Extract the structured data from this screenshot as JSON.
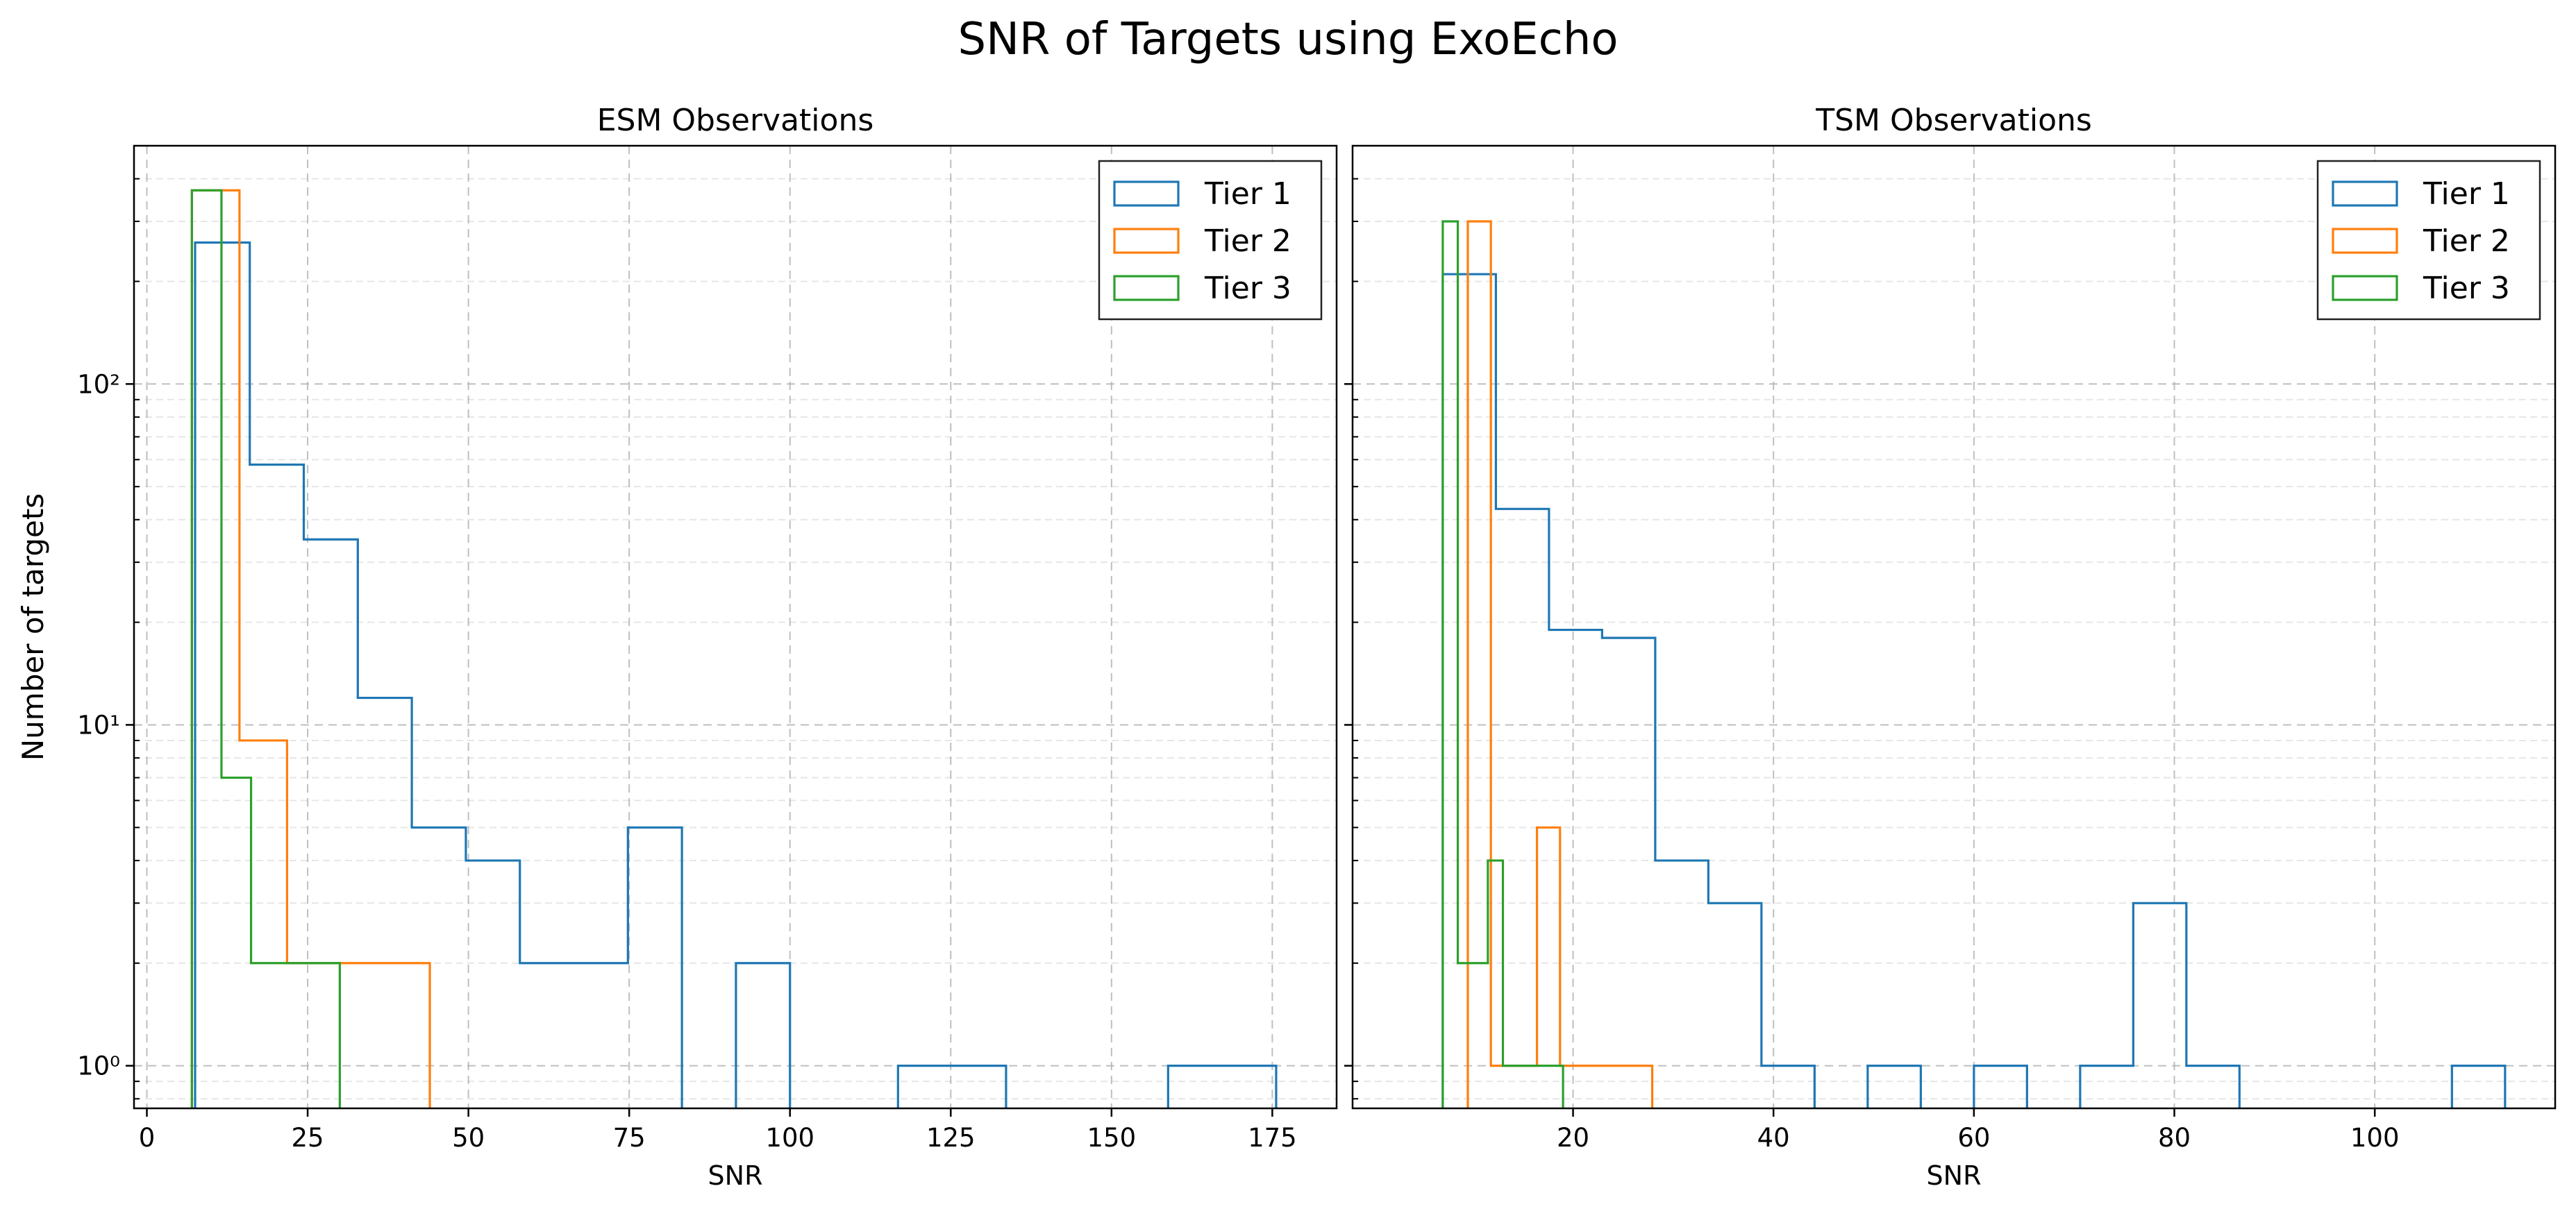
{
  "figure": {
    "title": "SNR of Targets using ExoEcho"
  },
  "colors": {
    "Tier 1": "#1f77b4",
    "Tier 2": "#ff7f0e",
    "Tier 3": "#2ca02c",
    "grid": "#b0b0b0",
    "axis": "#000000"
  },
  "chart_data": [
    {
      "type": "histogram",
      "title": "ESM Observations",
      "xlabel": "SNR",
      "ylabel": "Number of targets",
      "yscale": "log",
      "xlim": [
        -2,
        185
      ],
      "ylim": [
        0.75,
        500
      ],
      "xticks": [
        0,
        25,
        50,
        75,
        100,
        125,
        150,
        175
      ],
      "yticks": [
        {
          "v": 1,
          "label": "10⁰"
        },
        {
          "v": 10,
          "label": "10¹"
        },
        {
          "v": 100,
          "label": "10²"
        }
      ],
      "grid": true,
      "legend": "top-right",
      "series": [
        {
          "name": "Tier 1",
          "edges": [
            7.5,
            16,
            24.4,
            32.8,
            41.2,
            49.6,
            58,
            66.4,
            74.8,
            83.2,
            91.6,
            100,
            108.4,
            116.8,
            125.2,
            133.6,
            142,
            150.4,
            158.8,
            167.2,
            175.6
          ],
          "counts": [
            260,
            58,
            35,
            12,
            5,
            4,
            2,
            2,
            5,
            0,
            2,
            0,
            0,
            1,
            1,
            0,
            0,
            0,
            1,
            1
          ]
        },
        {
          "name": "Tier 2",
          "edges": [
            7,
            14.4,
            21.8,
            29.2,
            36.6,
            44
          ],
          "counts": [
            370,
            9,
            2,
            2,
            2
          ]
        },
        {
          "name": "Tier 3",
          "edges": [
            7,
            11.6,
            16.2,
            20.8,
            25.4,
            30
          ],
          "counts": [
            370,
            7,
            2,
            2,
            2
          ]
        }
      ]
    },
    {
      "type": "histogram",
      "title": "TSM Observations",
      "xlabel": "SNR",
      "ylabel": "",
      "yscale": "log",
      "xlim": [
        -2,
        118
      ],
      "ylim": [
        0.75,
        500
      ],
      "xticks": [
        20,
        40,
        60,
        80,
        100
      ],
      "yticks": [
        {
          "v": 1,
          "label": ""
        },
        {
          "v": 10,
          "label": ""
        },
        {
          "v": 100,
          "label": ""
        }
      ],
      "grid": true,
      "legend": "top-right",
      "series": [
        {
          "name": "Tier 1",
          "edges": [
            7,
            12.3,
            17.6,
            22.9,
            28.2,
            33.5,
            38.8,
            44.1,
            49.4,
            54.7,
            60,
            65.3,
            70.6,
            75.9,
            81.2,
            86.5,
            91.8,
            97.1,
            102.4,
            107.7,
            113
          ],
          "counts": [
            210,
            43,
            19,
            18,
            4,
            3,
            1,
            0,
            1,
            0,
            1,
            0,
            1,
            3,
            1,
            0,
            0,
            0,
            0,
            1
          ]
        },
        {
          "name": "Tier 2",
          "edges": [
            9.5,
            11.8,
            14.1,
            16.4,
            18.7,
            21,
            23.3,
            25.6,
            27.9
          ],
          "counts": [
            300,
            1,
            1,
            5,
            1,
            1,
            1,
            1
          ]
        },
        {
          "name": "Tier 3",
          "edges": [
            7,
            8.5,
            10,
            11.5,
            13,
            14.5,
            16,
            17.5,
            19
          ],
          "counts": [
            300,
            2,
            2,
            4,
            1,
            1,
            1,
            1
          ]
        }
      ]
    }
  ]
}
